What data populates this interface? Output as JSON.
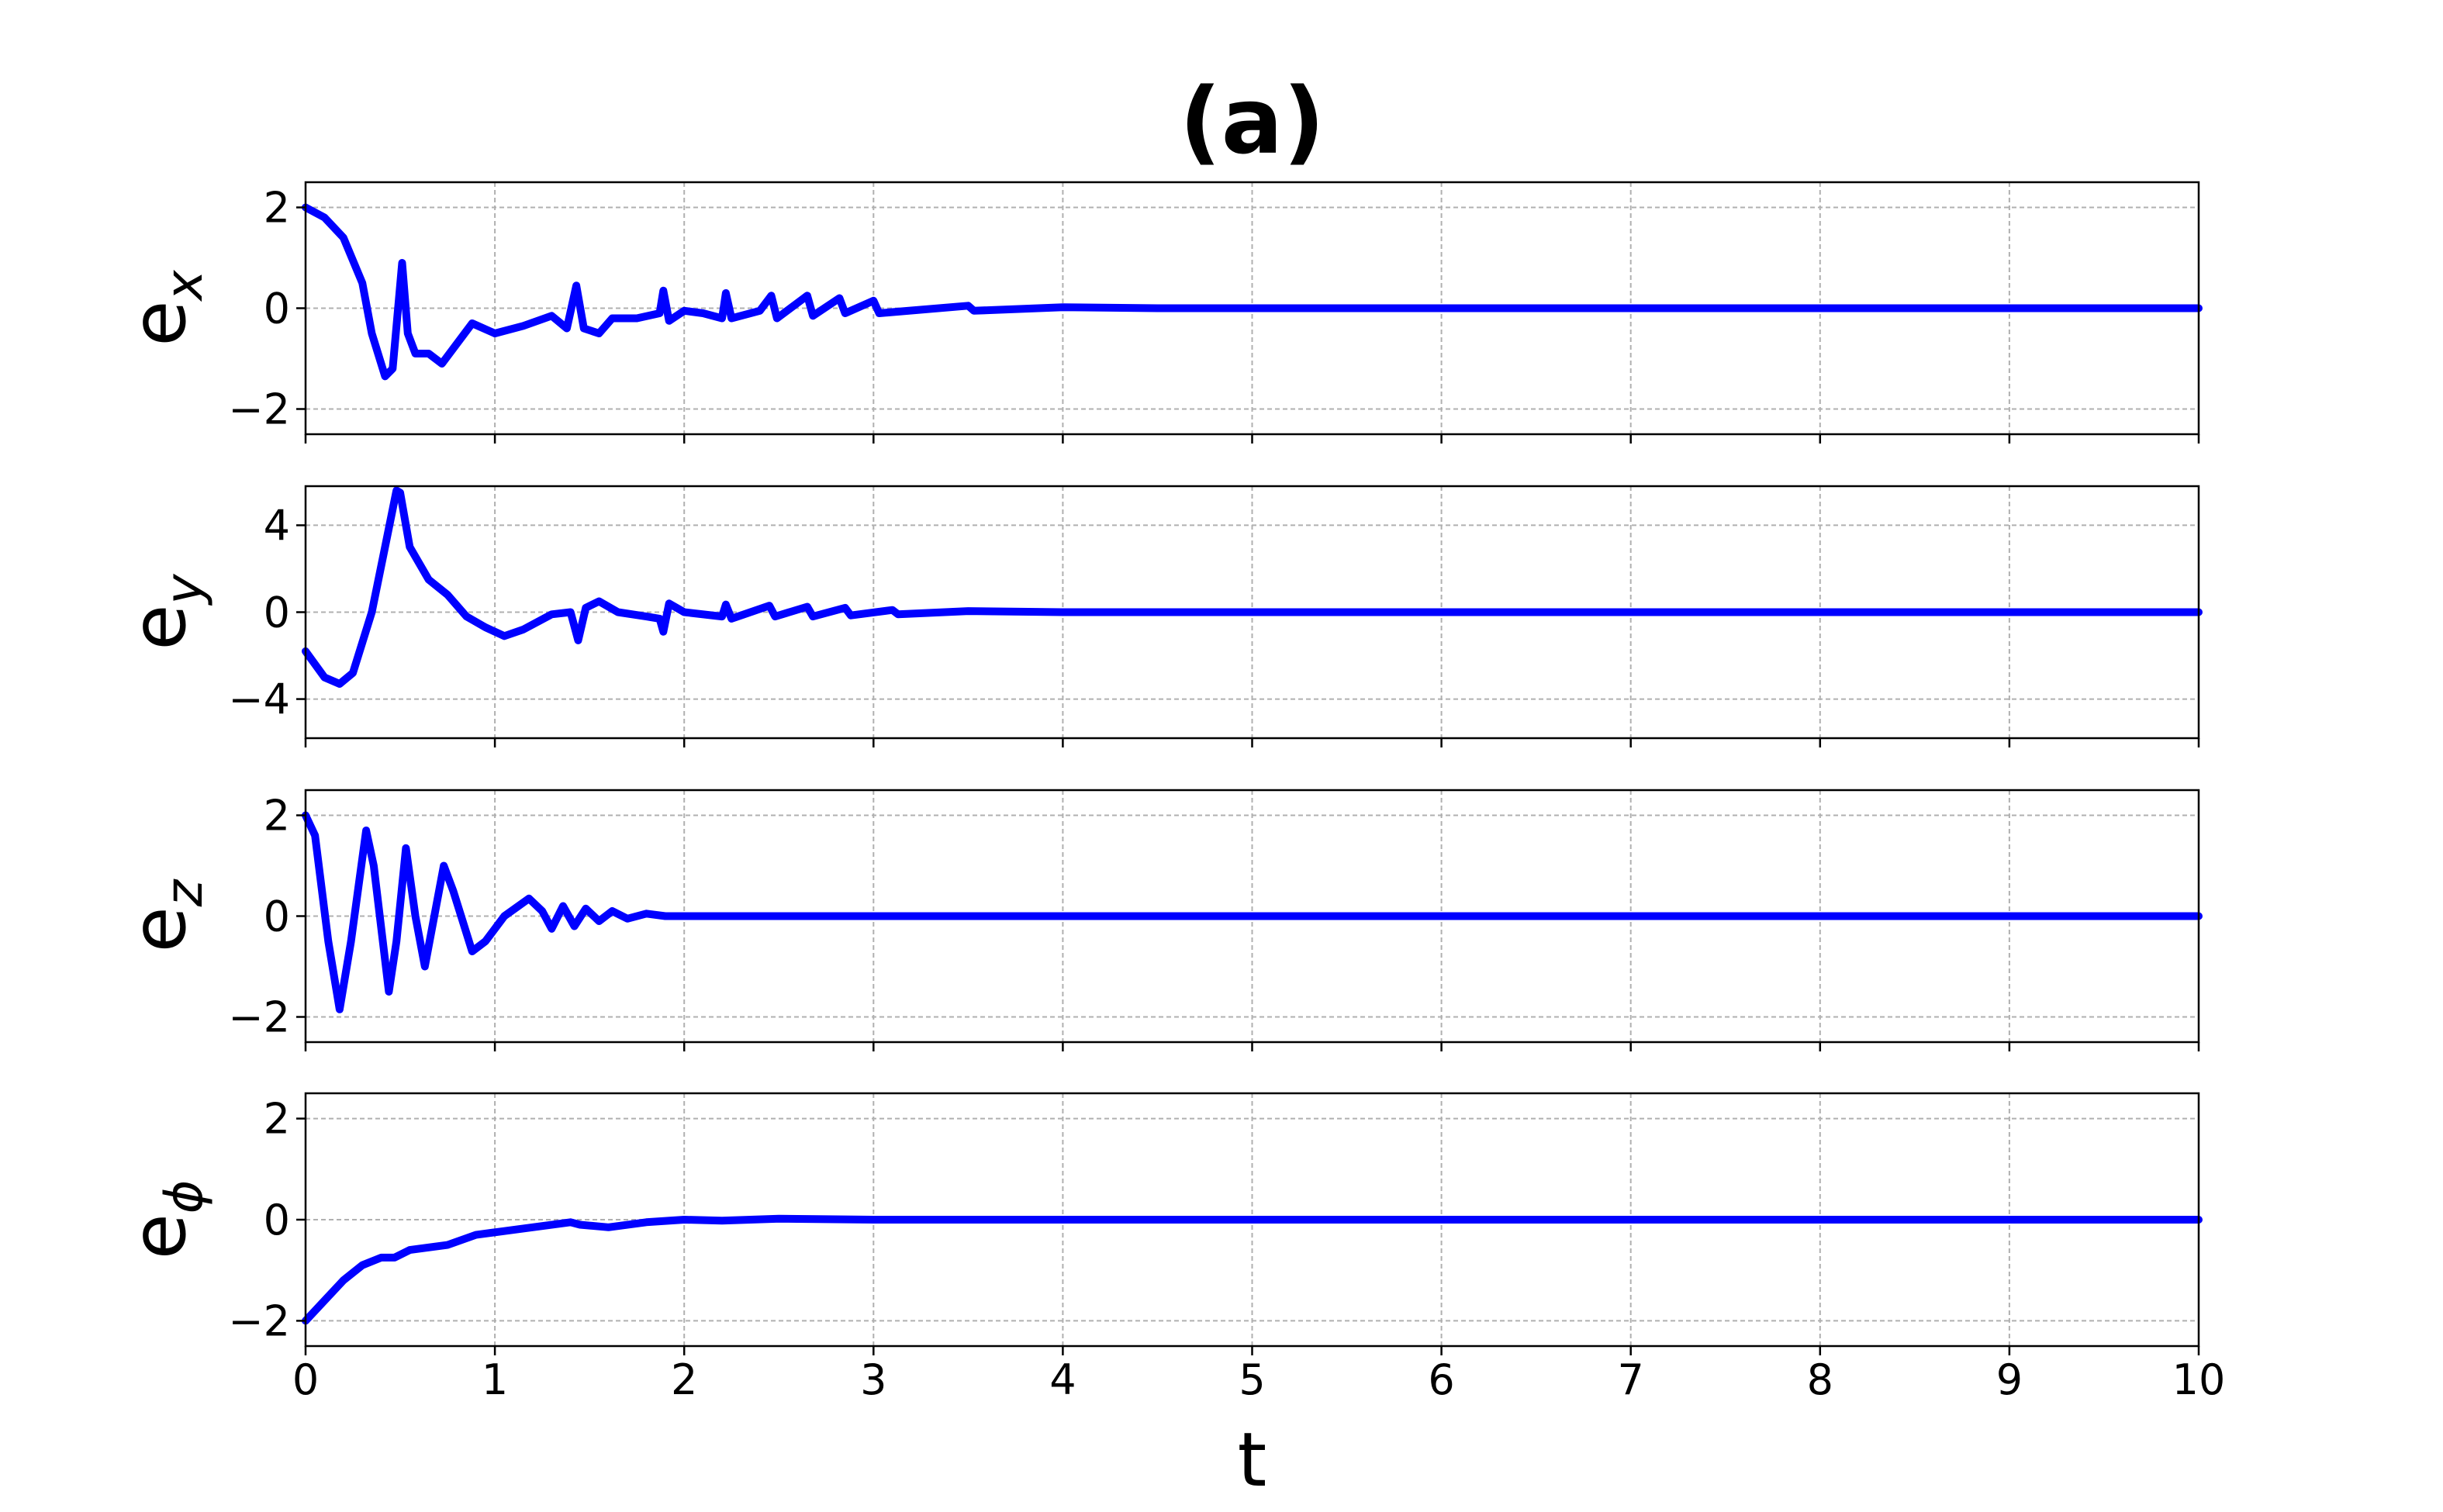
{
  "chart_data": [
    {
      "type": "line",
      "title": "(a)",
      "ylabel": "e",
      "ylabel_subscript": "x",
      "x": [
        0,
        0.1,
        0.2,
        0.3,
        0.35,
        0.42,
        0.46,
        0.51,
        0.54,
        0.58,
        0.65,
        0.72,
        0.8,
        0.88,
        1.0,
        1.15,
        1.3,
        1.38,
        1.43,
        1.47,
        1.55,
        1.62,
        1.75,
        1.87,
        1.89,
        1.92,
        2.0,
        2.1,
        2.2,
        2.22,
        2.25,
        2.4,
        2.46,
        2.49,
        2.65,
        2.68,
        2.82,
        2.85,
        3.0,
        3.03,
        3.5,
        3.53,
        4.0,
        4.5,
        10
      ],
      "series": [
        {
          "name": "e_x",
          "color": "#0000ff",
          "values": [
            2,
            1.8,
            1.4,
            0.5,
            -0.5,
            -1.35,
            -1.2,
            0.9,
            -0.5,
            -0.9,
            -0.9,
            -1.1,
            -0.7,
            -0.3,
            -0.5,
            -0.35,
            -0.15,
            -0.4,
            0.45,
            -0.4,
            -0.5,
            -0.2,
            -0.2,
            -0.1,
            0.35,
            -0.25,
            -0.05,
            -0.1,
            -0.2,
            0.3,
            -0.2,
            -0.05,
            0.25,
            -0.2,
            0.25,
            -0.15,
            0.2,
            -0.1,
            0.15,
            -0.1,
            0.05,
            -0.05,
            0.02,
            0,
            0
          ]
        }
      ],
      "xlim": [
        0,
        10
      ],
      "xticks": [
        0,
        1,
        2,
        3,
        4,
        5,
        6,
        7,
        8,
        9,
        10
      ],
      "ylim": [
        -2.5,
        2.5
      ],
      "yticks": [
        {
          "value": -2,
          "label": "−2"
        },
        0,
        2
      ],
      "grid": true
    },
    {
      "type": "line",
      "ylabel": "e",
      "ylabel_subscript": "y",
      "x": [
        0,
        0.1,
        0.18,
        0.25,
        0.35,
        0.42,
        0.48,
        0.5,
        0.55,
        0.65,
        0.75,
        0.85,
        0.95,
        1.05,
        1.15,
        1.3,
        1.4,
        1.44,
        1.48,
        1.55,
        1.65,
        1.8,
        1.87,
        1.89,
        1.92,
        2.0,
        2.2,
        2.22,
        2.25,
        2.45,
        2.48,
        2.65,
        2.68,
        2.85,
        2.88,
        3.1,
        3.13,
        3.5,
        4.0,
        10
      ],
      "series": [
        {
          "name": "e_y",
          "color": "#0000ff",
          "values": [
            -1.8,
            -3.0,
            -3.3,
            -2.8,
            0,
            3,
            5.6,
            5.5,
            3,
            1.5,
            0.8,
            -0.2,
            -0.7,
            -1.1,
            -0.8,
            -0.1,
            0,
            -1.3,
            0.2,
            0.5,
            0,
            -0.2,
            -0.3,
            -0.9,
            0.4,
            0,
            -0.2,
            0.35,
            -0.3,
            0.3,
            -0.2,
            0.25,
            -0.2,
            0.2,
            -0.15,
            0.1,
            -0.1,
            0.05,
            0,
            0
          ]
        }
      ],
      "xlim": [
        0,
        10
      ],
      "xticks": [
        0,
        1,
        2,
        3,
        4,
        5,
        6,
        7,
        8,
        9,
        10
      ],
      "ylim": [
        -5.8,
        5.8
      ],
      "yticks": [
        {
          "value": -4,
          "label": "−4"
        },
        0,
        4
      ],
      "grid": true
    },
    {
      "type": "line",
      "ylabel": "e",
      "ylabel_subscript": "z",
      "x": [
        0,
        0.05,
        0.12,
        0.18,
        0.24,
        0.32,
        0.36,
        0.44,
        0.48,
        0.53,
        0.58,
        0.63,
        0.68,
        0.73,
        0.78,
        0.88,
        0.95,
        1.05,
        1.18,
        1.25,
        1.3,
        1.36,
        1.42,
        1.48,
        1.55,
        1.62,
        1.7,
        1.8,
        1.9,
        10
      ],
      "series": [
        {
          "name": "e_z",
          "color": "#0000ff",
          "values": [
            2,
            1.6,
            -0.5,
            -1.85,
            -0.5,
            1.7,
            1.0,
            -1.5,
            -0.5,
            1.35,
            0,
            -1.0,
            0,
            1.0,
            0.5,
            -0.7,
            -0.5,
            0,
            0.35,
            0.1,
            -0.25,
            0.2,
            -0.2,
            0.15,
            -0.1,
            0.1,
            -0.05,
            0.05,
            0,
            0
          ]
        }
      ],
      "xlim": [
        0,
        10
      ],
      "xticks": [
        0,
        1,
        2,
        3,
        4,
        5,
        6,
        7,
        8,
        9,
        10
      ],
      "ylim": [
        -2.5,
        2.5
      ],
      "yticks": [
        {
          "value": -2,
          "label": "−2"
        },
        0,
        2
      ],
      "grid": true
    },
    {
      "type": "line",
      "ylabel": "e",
      "ylabel_subscript": "ϕ",
      "xlabel": "t",
      "x": [
        0,
        0.1,
        0.2,
        0.3,
        0.4,
        0.47,
        0.55,
        0.75,
        0.9,
        1.0,
        1.2,
        1.4,
        1.45,
        1.6,
        1.8,
        2.0,
        2.2,
        2.5,
        3.0,
        10
      ],
      "series": [
        {
          "name": "e_phi",
          "color": "#0000ff",
          "values": [
            -2,
            -1.6,
            -1.2,
            -0.9,
            -0.75,
            -0.75,
            -0.6,
            -0.5,
            -0.3,
            -0.25,
            -0.15,
            -0.05,
            -0.1,
            -0.15,
            -0.05,
            0,
            -0.02,
            0.02,
            0,
            0
          ]
        }
      ],
      "xlim": [
        0,
        10
      ],
      "xticks": [
        0,
        1,
        2,
        3,
        4,
        5,
        6,
        7,
        8,
        9,
        10
      ],
      "ylim": [
        -2.5,
        2.5
      ],
      "yticks": [
        {
          "value": -2,
          "label": "−2"
        },
        0,
        2
      ],
      "grid": true
    }
  ]
}
